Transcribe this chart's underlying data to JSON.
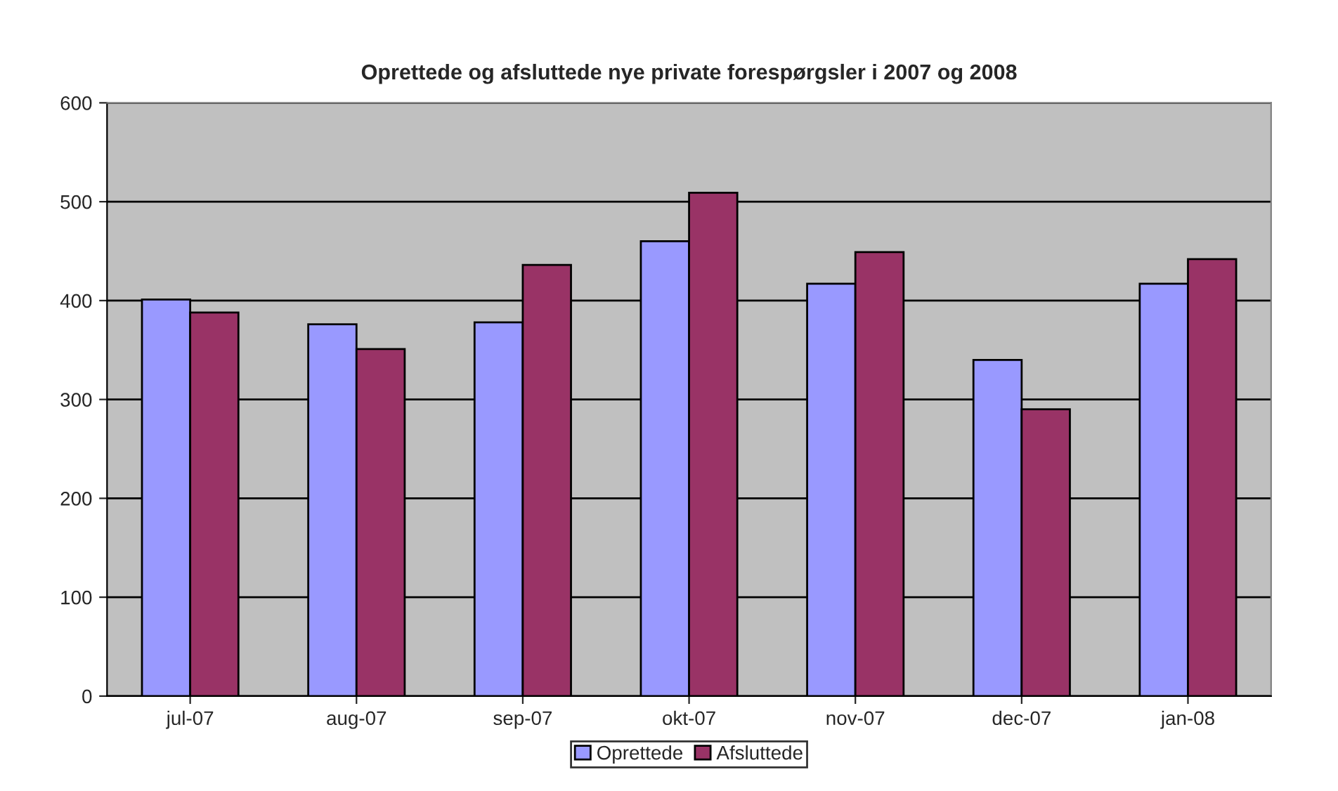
{
  "chart_data": {
    "type": "bar",
    "title": "Oprettede og afsluttede nye private forespørgsler i 2007 og 2008",
    "categories": [
      "jul-07",
      "aug-07",
      "sep-07",
      "okt-07",
      "nov-07",
      "dec-07",
      "jan-08"
    ],
    "series": [
      {
        "name": "Oprettede",
        "color": "#9999ff",
        "values": [
          401,
          376,
          378,
          460,
          417,
          340,
          417
        ]
      },
      {
        "name": "Afsluttede",
        "color": "#993366",
        "values": [
          388,
          351,
          436,
          509,
          449,
          290,
          442
        ]
      }
    ],
    "ylim": [
      0,
      600
    ],
    "yticks": [
      0,
      100,
      200,
      300,
      400,
      500,
      600
    ],
    "grid": "y",
    "legend": "bottom"
  }
}
